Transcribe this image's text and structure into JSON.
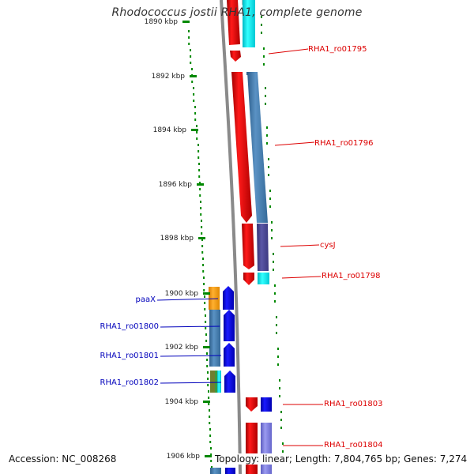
{
  "title": "Rhodococcus jostii RHA1, complete genome",
  "accession": "Accession: NC_008268",
  "summary": "Topology: linear; Length: 7,804,765 bp; Genes: 7,274",
  "ticks": [
    {
      "label": "1890 kbp"
    },
    {
      "label": "1892 kbp"
    },
    {
      "label": "1894 kbp"
    },
    {
      "label": "1896 kbp"
    },
    {
      "label": "1898 kbp"
    },
    {
      "label": "1900 kbp"
    },
    {
      "label": "1902 kbp"
    },
    {
      "label": "1904 kbp"
    },
    {
      "label": "1906 kbp"
    }
  ],
  "gene_labels": [
    {
      "text": "RHA1_ro01795",
      "color": "#dd0000"
    },
    {
      "text": "RHA1_ro01796",
      "color": "#dd0000"
    },
    {
      "text": "cysJ",
      "color": "#dd0000"
    },
    {
      "text": "RHA1_ro01798",
      "color": "#dd0000"
    },
    {
      "text": "paaX",
      "color": "#0000bb"
    },
    {
      "text": "RHA1_ro01800",
      "color": "#0000bb"
    },
    {
      "text": "RHA1_ro01801",
      "color": "#0000bb"
    },
    {
      "text": "RHA1_ro01802",
      "color": "#0000bb"
    },
    {
      "text": "RHA1_ro01803",
      "color": "#dd0000"
    },
    {
      "text": "RHA1_ro01804",
      "color": "#dd0000"
    }
  ],
  "colors": {
    "forward_strand": "#ee0000",
    "reverse_strand": "#0000ee",
    "cog_steelblue": "#4a7fb0",
    "cog_cyan": "#00e5ee",
    "cog_orange": "#ff9900",
    "cog_slate": "#4d4a92",
    "cog_lavender": "#7777dd",
    "axis": "#888888",
    "tick": "#008800"
  }
}
